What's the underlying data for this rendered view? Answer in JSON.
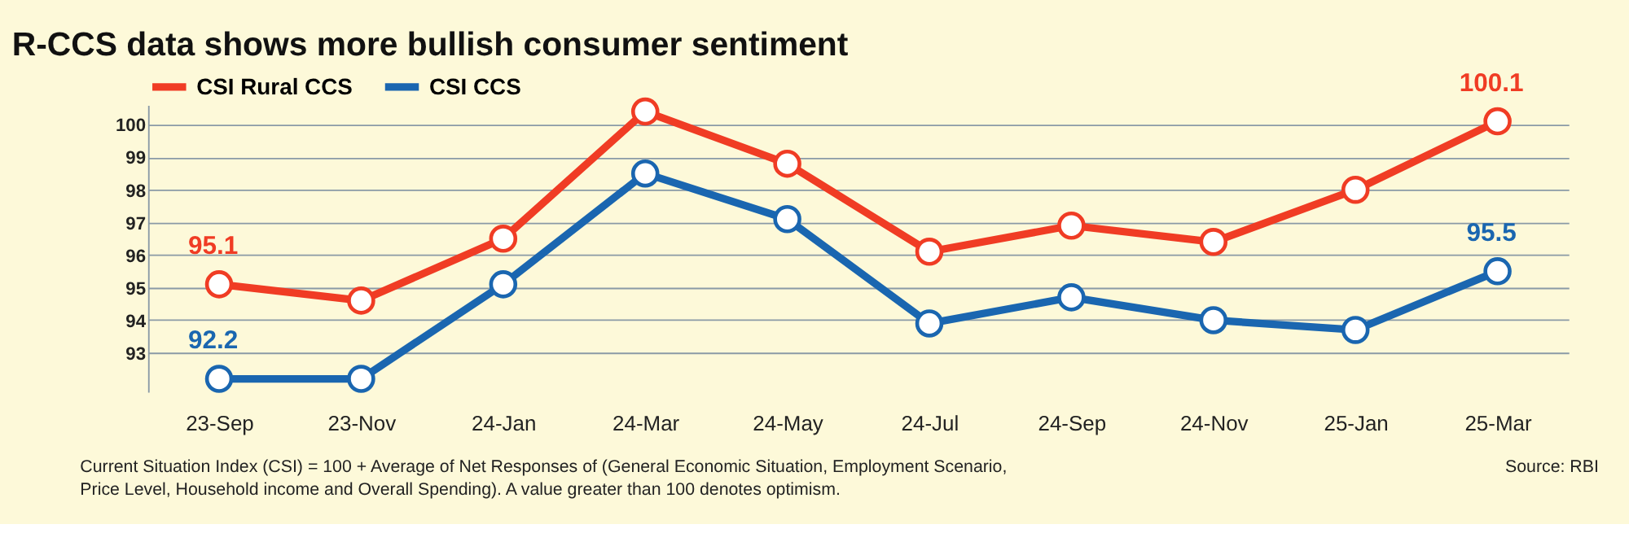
{
  "chart_data": {
    "type": "line",
    "title": "R-CCS data shows more bullish consumer sentiment",
    "categories": [
      "23-Sep",
      "23-Nov",
      "24-Jan",
      "24-Mar",
      "24-May",
      "24-Jul",
      "24-Sep",
      "24-Nov",
      "25-Jan",
      "25-Mar"
    ],
    "series": [
      {
        "name": "CSI Rural CCS",
        "color": "#f03c24",
        "values": [
          95.1,
          94.6,
          96.5,
          100.4,
          98.8,
          96.1,
          96.9,
          96.4,
          98.0,
          100.1
        ],
        "value_labels": [
          "95.1",
          null,
          null,
          null,
          null,
          null,
          null,
          null,
          null,
          "100.1"
        ]
      },
      {
        "name": "CSI CCS",
        "color": "#1a66b0",
        "values": [
          92.2,
          92.2,
          95.1,
          98.5,
          97.1,
          93.9,
          94.7,
          94.0,
          93.7,
          95.5
        ],
        "value_labels": [
          "92.2",
          null,
          null,
          null,
          null,
          null,
          null,
          null,
          null,
          "95.5"
        ]
      }
    ],
    "ylim": [
      91.8,
      100.6
    ],
    "yticks": [
      93,
      94,
      95,
      96,
      97,
      98,
      99,
      100
    ],
    "grid": "y",
    "legend": "top left",
    "marker": "circle",
    "line_style": "solid",
    "annotations": [
      "Current Situation Index (CSI) = 100 + Average of Net Responses of (General Economic Situation, Employment Scenario, Price Level, Household income and Overall Spending). A value greater than 100 denotes optimism.",
      "Source: RBI"
    ]
  }
}
